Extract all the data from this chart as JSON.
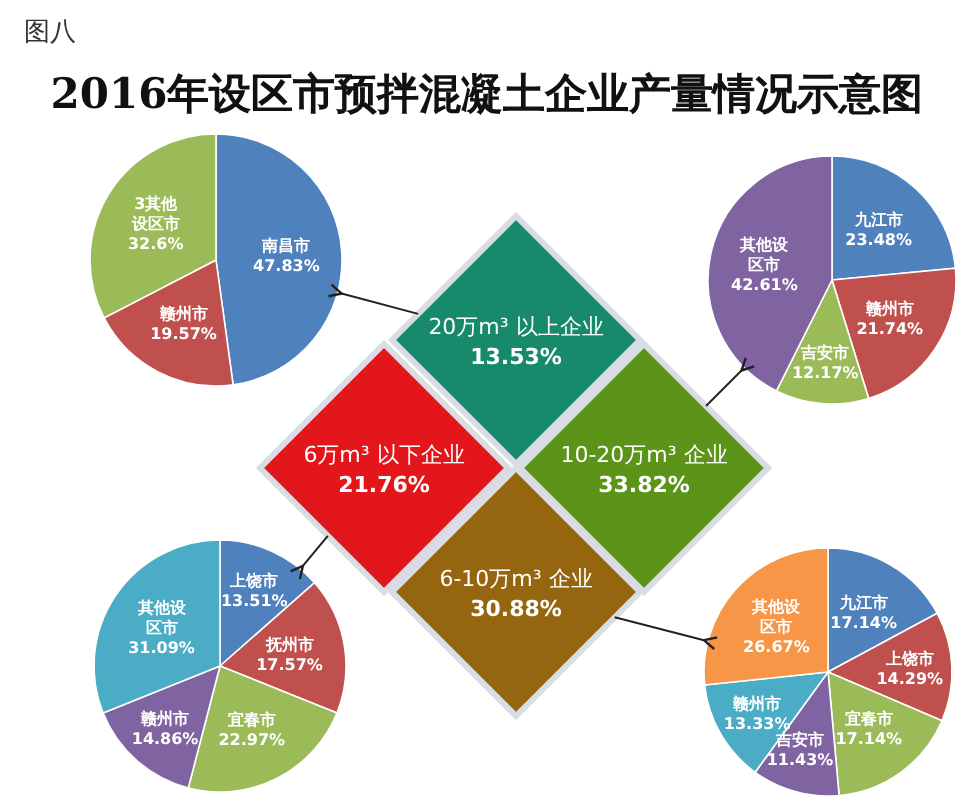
{
  "chart_data": [
    {
      "type": "other",
      "title": "2016年设区市预拌混凝土企业产量情况示意图",
      "annotations": [
        "图八"
      ],
      "categories": [
        "20万m³ 以上企业",
        "6万m³ 以下企业",
        "10-20万m³ 企业",
        "6-10万m³ 企业"
      ],
      "values": [
        13.53,
        21.76,
        33.82,
        30.88
      ],
      "value_labels": [
        "13.53%",
        "21.76%",
        "33.82%",
        "30.88%"
      ],
      "colors": [
        "#178a6c",
        "#e3161c",
        "#5b9418",
        "#95660f"
      ],
      "data_labels": true
    },
    {
      "type": "pie",
      "categories": [
        "南昌市",
        "赣州市",
        "3其他设区市"
      ],
      "values": [
        47.83,
        19.57,
        32.6
      ],
      "value_labels": [
        "47.83%",
        "19.57%",
        "32.6%"
      ],
      "colors": [
        "#4f81bd",
        "#c0504d",
        "#9bbb59"
      ],
      "data_labels": true
    },
    {
      "type": "pie",
      "categories": [
        "九江市",
        "赣州市",
        "吉安市",
        "其他设区市"
      ],
      "values": [
        23.48,
        21.74,
        12.17,
        42.61
      ],
      "value_labels": [
        "23.48%",
        "21.74%",
        "12.17%",
        "42.61%"
      ],
      "colors": [
        "#4f81bd",
        "#c0504d",
        "#9bbb59",
        "#8064a2"
      ],
      "data_labels": true
    },
    {
      "type": "pie",
      "categories": [
        "上饶市",
        "抚州市",
        "宜春市",
        "赣州市",
        "其他设区市"
      ],
      "values": [
        13.51,
        17.57,
        22.97,
        14.86,
        31.09
      ],
      "value_labels": [
        "13.51%",
        "17.57%",
        "22.97%",
        "14.86%",
        "31.09%"
      ],
      "colors": [
        "#4f81bd",
        "#c0504d",
        "#9bbb59",
        "#8064a2",
        "#4bacc6"
      ],
      "data_labels": true
    },
    {
      "type": "pie",
      "categories": [
        "九江市",
        "上饶市",
        "宜春市",
        "吉安市",
        "赣州市",
        "其他设区市"
      ],
      "values": [
        17.14,
        14.29,
        17.14,
        11.43,
        13.33,
        26.67
      ],
      "value_labels": [
        "17.14%",
        "14.29%",
        "17.14%",
        "11.43%",
        "13.33%",
        "26.67%"
      ],
      "colors": [
        "#4f81bd",
        "#c0504d",
        "#9bbb59",
        "#8064a2",
        "#4bacc6",
        "#f79646"
      ],
      "data_labels": true
    }
  ]
}
